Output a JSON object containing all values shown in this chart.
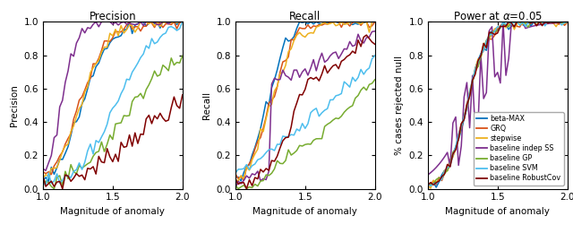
{
  "title1": "Precision",
  "title2": "Recall",
  "title3": "Power at $\\alpha$=0.05",
  "xlabel": "Magnitude of anomaly",
  "ylabel1": "Precision",
  "ylabel2": "Recall",
  "ylabel3": "% cases rejected null",
  "colors": {
    "beta_MAX": "#0072bd",
    "GRQ": "#d95319",
    "stepwise": "#edb120",
    "baseline_indepSS": "#7e2f8e",
    "baseline_GP": "#77ac30",
    "baseline_SVM": "#4dbeee",
    "baseline_RobustCov": "#800000"
  },
  "legend_labels": [
    "beta-MAX",
    "GRQ",
    "stepwise",
    "baseline indep SS",
    "baseline GP",
    "baseline SVM",
    "baseline RobustCov"
  ]
}
